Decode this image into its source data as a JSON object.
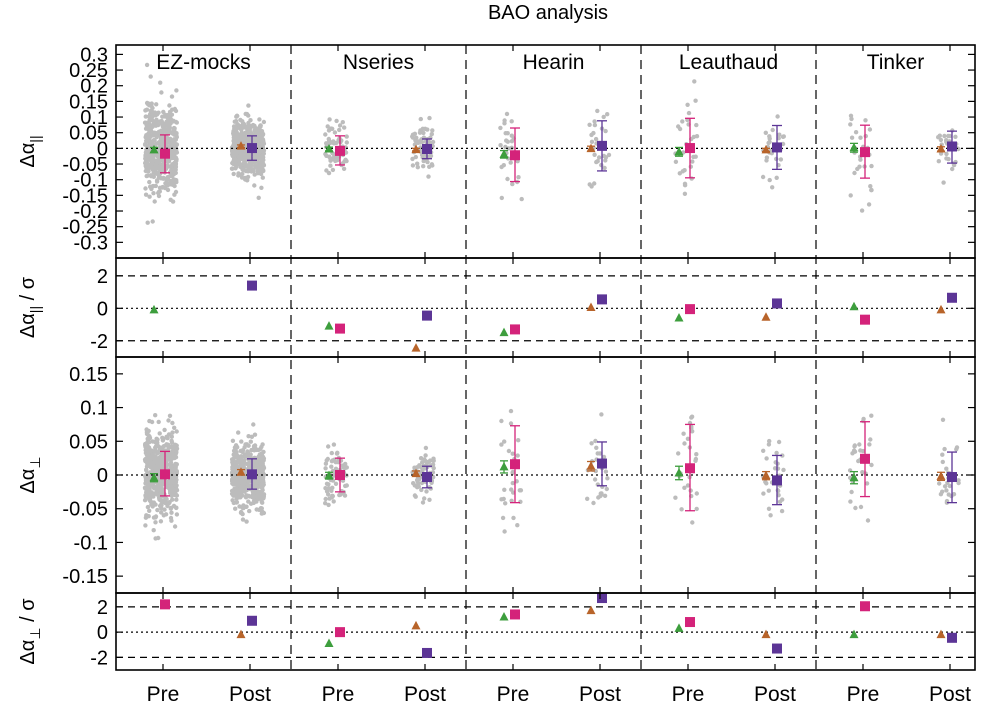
{
  "chart_data": {
    "type": "scatter",
    "title": "BAO analysis",
    "groups": [
      "EZ-mocks",
      "Nseries",
      "Hearin",
      "Leauthaud",
      "Tinker"
    ],
    "columns": [
      "Pre",
      "Post"
    ],
    "colors": {
      "points": "#bcbcbc",
      "triangle": "#3d9e3d",
      "triangle_post": "#b8642a",
      "square_pre": "#d4237a",
      "square_post": "#5c3596",
      "line": "#000000"
    },
    "panels": [
      {
        "id": "alpha_par",
        "ylabel": "Δα",
        "ylabel_sub": "||",
        "ylabel_suffix": "",
        "ylim": [
          -0.35,
          0.33
        ],
        "ticks": [
          0.3,
          0.25,
          0.2,
          0.15,
          0.1,
          0.05,
          0,
          -0.05,
          -0.1,
          -0.15,
          -0.2,
          -0.25,
          -0.3
        ],
        "tick_labels": [
          "0.3",
          "0.25",
          "0.2",
          "0.15",
          "0.1",
          "0.05",
          "0",
          "-0.05",
          "-0.1",
          "-0.15",
          "-0.2",
          "-0.25",
          "-0.3"
        ],
        "ref_lines": [
          {
            "y": 0,
            "style": "dotted"
          }
        ],
        "markers": [
          [
            {
              "tri": -0.005,
              "tri_err": 0.008,
              "sq": -0.017,
              "sq_lo": -0.078,
              "sq_hi": 0.043
            },
            {
              "tri": 0.007,
              "tri_err": 0.004,
              "sq": 0.001,
              "sq_lo": -0.038,
              "sq_hi": 0.04
            }
          ],
          [
            {
              "tri": -0.002,
              "tri_err": 0.006,
              "sq": -0.008,
              "sq_lo": -0.053,
              "sq_hi": 0.04
            },
            {
              "tri": -0.004,
              "tri_err": 0.004,
              "sq": -0.002,
              "sq_lo": -0.033,
              "sq_hi": 0.03
            }
          ],
          [
            {
              "tri": -0.019,
              "tri_err": 0.012,
              "sq": -0.022,
              "sq_lo": -0.106,
              "sq_hi": 0.065
            },
            {
              "tri": -0.001,
              "tri_err": 0.008,
              "sq": 0.008,
              "sq_lo": -0.072,
              "sq_hi": 0.088
            }
          ],
          [
            {
              "tri": -0.011,
              "tri_err": 0.014,
              "sq": 0.001,
              "sq_lo": -0.094,
              "sq_hi": 0.096
            },
            {
              "tri": -0.005,
              "tri_err": 0.005,
              "sq": 0.003,
              "sq_lo": -0.067,
              "sq_hi": 0.073
            }
          ],
          [
            {
              "tri": 0.002,
              "tri_err": 0.014,
              "sq": -0.012,
              "sq_lo": -0.095,
              "sq_hi": 0.074
            },
            {
              "tri": -0.002,
              "tri_err": 0.007,
              "sq": 0.006,
              "sq_lo": -0.047,
              "sq_hi": 0.055
            }
          ]
        ]
      },
      {
        "id": "sig_par",
        "ylabel": "Δα",
        "ylabel_sub": "||",
        "ylabel_suffix": " / σ",
        "ylim": [
          -3,
          3.1
        ],
        "ticks": [
          2,
          0,
          -2
        ],
        "tick_labels": [
          "2",
          "0",
          "-2"
        ],
        "ref_lines": [
          {
            "y": 2,
            "style": "dashed"
          },
          {
            "y": 0,
            "style": "dotted"
          },
          {
            "y": -2,
            "style": "dashed"
          }
        ],
        "markers": [
          [
            {
              "tri": -0.1,
              "sq": null
            },
            {
              "tri": null,
              "sq": 1.4
            }
          ],
          [
            {
              "tri": -1.1,
              "sq": -1.25
            },
            {
              "tri": -2.45,
              "sq": -0.45
            }
          ],
          [
            {
              "tri": -1.5,
              "sq": -1.3
            },
            {
              "tri": 0.05,
              "sq": 0.55
            }
          ],
          [
            {
              "tri": -0.6,
              "sq": -0.05
            },
            {
              "tri": -0.55,
              "sq": 0.3
            }
          ],
          [
            {
              "tri": 0.1,
              "sq": -0.7
            },
            {
              "tri": -0.1,
              "sq": 0.65
            }
          ]
        ]
      },
      {
        "id": "alpha_perp",
        "ylabel": "Δα",
        "ylabel_sub": "⊥",
        "ylabel_suffix": "",
        "ylim": [
          -0.175,
          0.175
        ],
        "ticks": [
          0.15,
          0.1,
          0.05,
          0,
          -0.05,
          -0.1,
          -0.15
        ],
        "tick_labels": [
          "0.15",
          "0.1",
          "0.05",
          "0",
          "-0.05",
          "-0.1",
          "-0.15"
        ],
        "ref_lines": [
          {
            "y": 0,
            "style": "dotted"
          }
        ],
        "markers": [
          [
            {
              "tri": -0.004,
              "tri_err": 0.006,
              "sq": 0.001,
              "sq_lo": -0.031,
              "sq_hi": 0.035
            },
            {
              "tri": 0.004,
              "tri_err": 0.004,
              "sq": 0.001,
              "sq_lo": -0.021,
              "sq_hi": 0.024
            }
          ],
          [
            {
              "tri": -0.001,
              "tri_err": 0.005,
              "sq": 0.0,
              "sq_lo": -0.025,
              "sq_hi": 0.025
            },
            {
              "tri": 0.002,
              "tri_err": 0.004,
              "sq": -0.003,
              "sq_lo": -0.019,
              "sq_hi": 0.013
            }
          ],
          [
            {
              "tri": 0.012,
              "tri_err": 0.009,
              "sq": 0.016,
              "sq_lo": -0.041,
              "sq_hi": 0.073
            },
            {
              "tri": 0.013,
              "tri_err": 0.007,
              "sq": 0.017,
              "sq_lo": -0.016,
              "sq_hi": 0.049
            }
          ],
          [
            {
              "tri": 0.003,
              "tri_err": 0.01,
              "sq": 0.01,
              "sq_lo": -0.053,
              "sq_hi": 0.075
            },
            {
              "tri": -0.001,
              "tri_err": 0.006,
              "sq": -0.008,
              "sq_lo": -0.044,
              "sq_hi": 0.029
            }
          ],
          [
            {
              "tri": -0.004,
              "tri_err": 0.009,
              "sq": 0.024,
              "sq_lo": -0.032,
              "sq_hi": 0.079
            },
            {
              "tri": -0.002,
              "tri_err": 0.006,
              "sq": -0.003,
              "sq_lo": -0.041,
              "sq_hi": 0.034
            }
          ]
        ]
      },
      {
        "id": "sig_perp",
        "ylabel": "Δα",
        "ylabel_sub": "⊥",
        "ylabel_suffix": " / σ",
        "ylim": [
          -3,
          3.1
        ],
        "ticks": [
          2,
          0,
          -2
        ],
        "tick_labels": [
          "2",
          "0",
          "-2"
        ],
        "ref_lines": [
          {
            "y": 2,
            "style": "dashed"
          },
          {
            "y": 0,
            "style": "dotted"
          },
          {
            "y": -2,
            "style": "dashed"
          }
        ],
        "markers": [
          [
            {
              "tri": null,
              "sq": 2.2
            },
            {
              "tri": -0.2,
              "sq": 0.9
            }
          ],
          [
            {
              "tri": -0.9,
              "sq": 0.0
            },
            {
              "tri": 0.5,
              "sq": -1.65
            }
          ],
          [
            {
              "tri": 1.2,
              "sq": 1.4
            },
            {
              "tri": 1.7,
              "sq": 2.7
            }
          ],
          [
            {
              "tri": 0.3,
              "sq": 0.8
            },
            {
              "tri": -0.2,
              "sq": -1.3
            }
          ],
          [
            {
              "tri": -0.2,
              "sq": 2.05
            },
            {
              "tri": -0.2,
              "sq": -0.45
            }
          ]
        ]
      }
    ],
    "scatter_spread": [
      [
        {
          "n": 520,
          "sd_par": 0.07,
          "sd_perp": 0.033
        },
        {
          "n": 520,
          "sd_par": 0.042,
          "sd_perp": 0.022
        }
      ],
      [
        {
          "n": 70,
          "sd_par": 0.042,
          "sd_perp": 0.022
        },
        {
          "n": 70,
          "sd_par": 0.034,
          "sd_perp": 0.016
        }
      ],
      [
        {
          "n": 28,
          "sd_par": 0.075,
          "sd_perp": 0.045
        },
        {
          "n": 28,
          "sd_par": 0.07,
          "sd_perp": 0.035
        }
      ],
      [
        {
          "n": 28,
          "sd_par": 0.085,
          "sd_perp": 0.055
        },
        {
          "n": 28,
          "sd_par": 0.065,
          "sd_perp": 0.035
        }
      ],
      [
        {
          "n": 28,
          "sd_par": 0.075,
          "sd_perp": 0.05
        },
        {
          "n": 28,
          "sd_par": 0.045,
          "sd_perp": 0.03
        }
      ]
    ]
  }
}
